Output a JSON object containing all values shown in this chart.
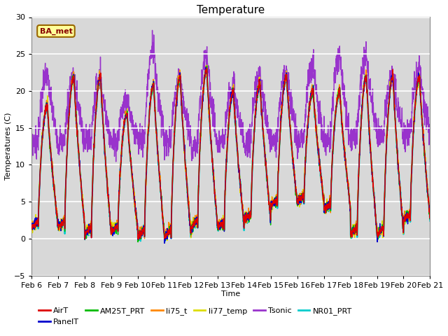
{
  "title": "Temperature",
  "xlabel": "Time",
  "ylabel": "Temperatures (C)",
  "ylim": [
    -5,
    30
  ],
  "xtick_labels": [
    "Feb 6",
    "Feb 7",
    "Feb 8",
    "Feb 9",
    "Feb 10",
    "Feb 11",
    "Feb 12",
    "Feb 13",
    "Feb 14",
    "Feb 15",
    "Feb 16",
    "Feb 17",
    "Feb 18",
    "Feb 19",
    "Feb 20",
    "Feb 21"
  ],
  "legend_entries": [
    {
      "label": "AirT",
      "color": "#dd0000"
    },
    {
      "label": "PanelT",
      "color": "#0000cc"
    },
    {
      "label": "AM25T_PRT",
      "color": "#00bb00"
    },
    {
      "label": "li75_t",
      "color": "#ff8800"
    },
    {
      "label": "li77_temp",
      "color": "#dddd00"
    },
    {
      "label": "Tsonic",
      "color": "#9933cc"
    },
    {
      "label": "NR01_PRT",
      "color": "#00cccc"
    }
  ],
  "annotation_text": "BA_met",
  "background_color": "#ffffff",
  "plot_bg_color": "#d8d8d8",
  "grid_color": "#ffffff",
  "title_fontsize": 11,
  "axis_fontsize": 8,
  "tick_fontsize": 8,
  "line_width": 1.0
}
